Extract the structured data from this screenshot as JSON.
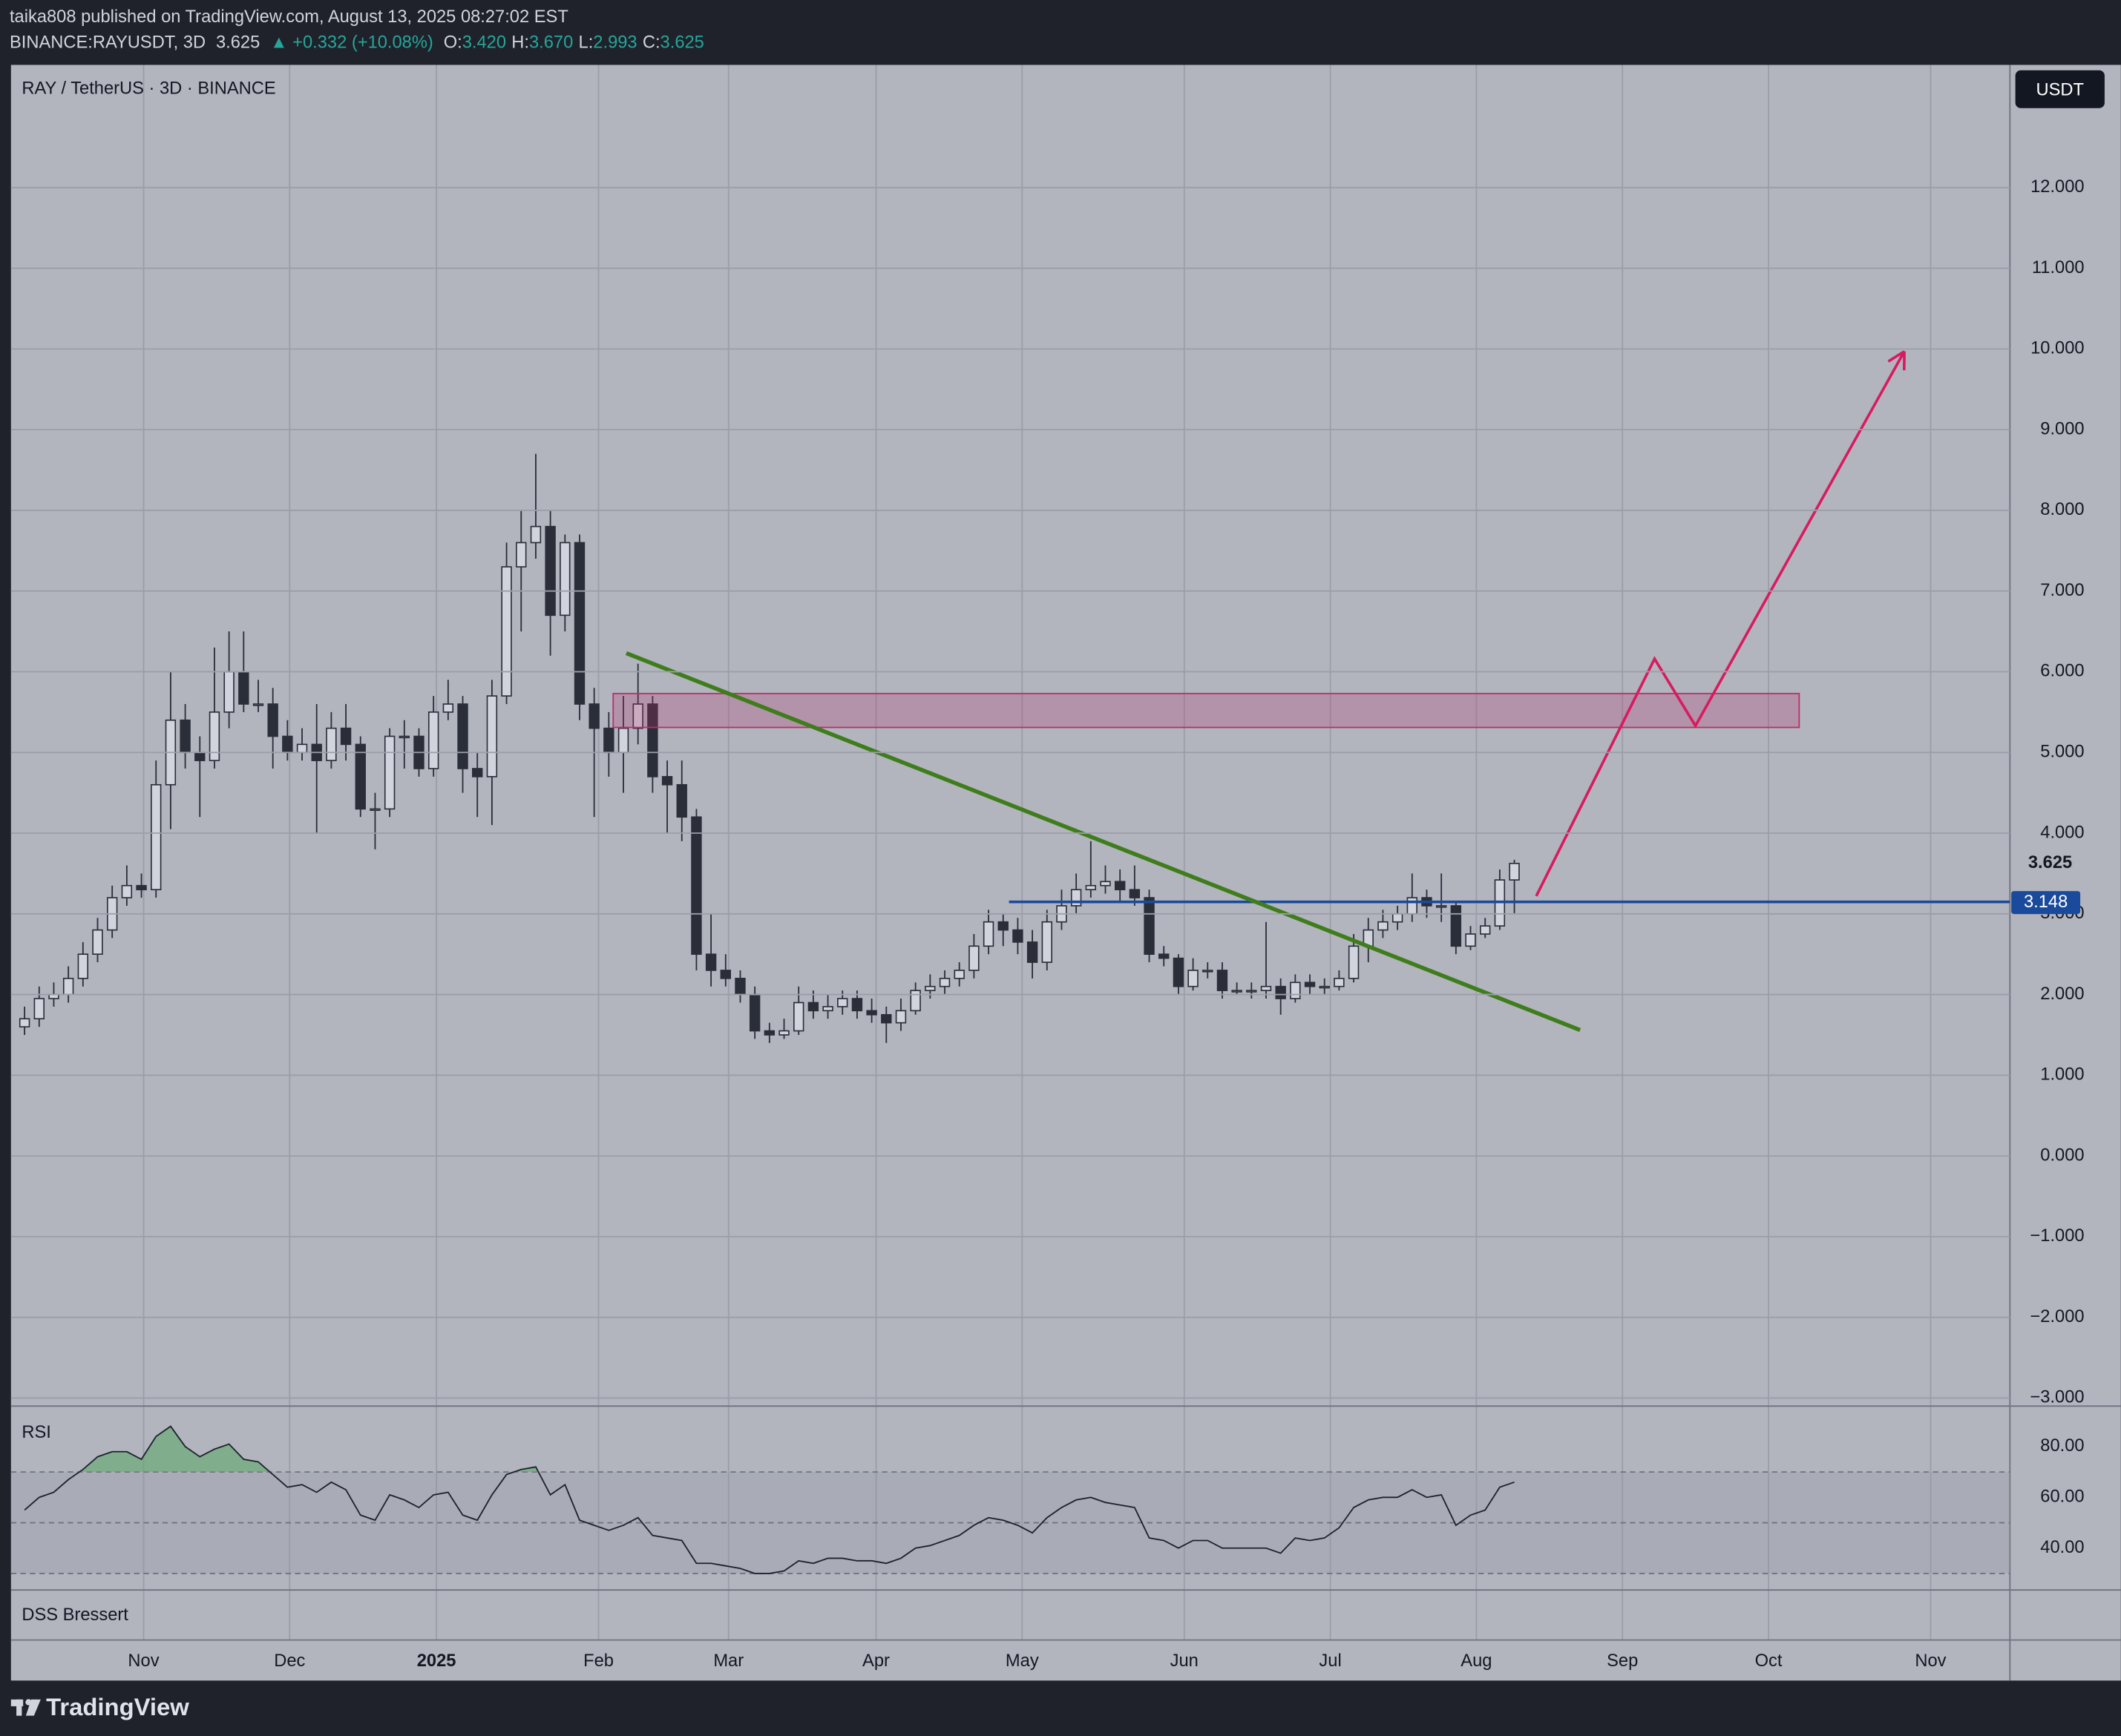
{
  "header": {
    "publisher": "taika808 published on TradingView.com, August 13, 2025 08:27:02 EST",
    "symbol": "BINANCE:RAYUSDT, 3D",
    "last": "3.625",
    "change": "▲ +0.332 (+10.08%)",
    "quote": [
      {
        "label": "O:",
        "value": "3.420"
      },
      {
        "label": "H:",
        "value": "3.670"
      },
      {
        "label": "L:",
        "value": "2.993"
      },
      {
        "label": "C:",
        "value": "3.625"
      }
    ]
  },
  "footer": {
    "logo": "TradingView"
  },
  "chart_data": [
    {
      "type": "candlestick",
      "title": "RAY / TetherUS · 3D · BINANCE",
      "currency": "USDT",
      "grid": true,
      "up_color": "#d1d4dc",
      "down_color": "#2a2e39",
      "wick_color": "#2a2e39",
      "x": [
        0,
        1,
        2,
        3,
        4,
        5,
        6,
        7,
        8,
        9,
        10,
        11,
        12,
        13,
        14,
        15,
        16,
        17,
        18,
        19,
        20,
        21,
        22,
        23,
        24,
        25,
        26,
        27,
        28,
        29,
        30,
        31,
        32,
        33,
        34,
        35,
        36,
        37,
        38,
        39,
        40,
        41,
        42,
        43,
        44,
        45,
        46,
        47,
        48,
        49,
        50,
        51,
        52,
        53,
        54,
        55,
        56,
        57,
        58,
        59,
        60,
        61,
        62,
        63,
        64,
        65,
        66,
        67,
        68,
        69,
        70,
        71,
        72,
        73,
        74,
        75,
        76,
        77,
        78,
        79,
        80,
        81,
        82,
        83,
        84,
        85,
        86,
        87,
        88,
        89,
        90,
        91,
        92,
        93,
        94,
        95,
        96,
        97,
        98,
        99,
        100,
        101,
        102
      ],
      "open": [
        1.6,
        1.7,
        1.95,
        2.0,
        2.2,
        2.5,
        2.8,
        3.2,
        3.35,
        3.3,
        4.6,
        5.4,
        5.0,
        4.9,
        5.5,
        6.0,
        5.6,
        5.6,
        5.2,
        5.0,
        5.1,
        4.9,
        5.3,
        5.1,
        4.3,
        4.3,
        5.2,
        5.2,
        4.8,
        5.5,
        5.6,
        4.8,
        4.7,
        5.7,
        7.3,
        7.6,
        7.8,
        6.7,
        7.6,
        5.6,
        5.3,
        5.0,
        5.3,
        5.6,
        4.7,
        4.6,
        4.2,
        2.5,
        2.3,
        2.2,
        2.0,
        1.55,
        1.5,
        1.55,
        1.9,
        1.8,
        1.85,
        1.95,
        1.8,
        1.75,
        1.65,
        1.8,
        2.05,
        2.1,
        2.2,
        2.3,
        2.6,
        2.9,
        2.8,
        2.65,
        2.4,
        2.9,
        3.1,
        3.3,
        3.35,
        3.4,
        3.3,
        3.2,
        2.5,
        2.45,
        2.1,
        2.3,
        2.3,
        2.05,
        2.05,
        2.05,
        2.1,
        1.95,
        2.15,
        2.1,
        2.1,
        2.2,
        2.6,
        2.8,
        2.9,
        3.0,
        3.2,
        3.1,
        3.1,
        2.6,
        2.75,
        2.85,
        3.42
      ],
      "high": [
        1.85,
        2.1,
        2.15,
        2.35,
        2.65,
        2.95,
        3.35,
        3.6,
        3.5,
        4.9,
        6.0,
        5.6,
        5.2,
        6.3,
        6.5,
        6.5,
        5.9,
        5.8,
        5.4,
        5.3,
        5.6,
        5.5,
        5.6,
        5.2,
        4.5,
        5.3,
        5.4,
        5.3,
        5.7,
        5.9,
        5.7,
        5.0,
        5.9,
        7.6,
        8.0,
        8.7,
        8.0,
        7.7,
        7.7,
        5.8,
        5.5,
        5.7,
        6.1,
        5.7,
        4.9,
        4.9,
        4.3,
        3.0,
        2.5,
        2.3,
        2.1,
        1.65,
        1.7,
        2.1,
        2.05,
        2.0,
        2.05,
        2.05,
        1.95,
        1.85,
        1.95,
        2.15,
        2.25,
        2.3,
        2.4,
        2.75,
        3.05,
        3.0,
        2.95,
        2.8,
        3.05,
        3.3,
        3.5,
        3.9,
        3.6,
        3.55,
        3.6,
        3.3,
        2.6,
        2.5,
        2.45,
        2.4,
        2.4,
        2.15,
        2.15,
        2.9,
        2.2,
        2.25,
        2.25,
        2.2,
        2.3,
        2.75,
        2.95,
        3.05,
        3.1,
        3.5,
        3.3,
        3.5,
        3.15,
        2.85,
        2.95,
        3.55,
        3.67
      ],
      "low": [
        1.5,
        1.6,
        1.85,
        1.9,
        2.1,
        2.4,
        2.7,
        3.1,
        3.2,
        3.2,
        4.05,
        4.8,
        4.2,
        4.8,
        5.3,
        5.5,
        5.5,
        4.8,
        4.9,
        4.9,
        4.0,
        4.8,
        4.9,
        4.2,
        3.8,
        4.2,
        4.8,
        4.7,
        4.7,
        5.4,
        4.5,
        4.2,
        4.1,
        5.6,
        6.5,
        7.4,
        6.2,
        6.5,
        5.4,
        4.2,
        4.7,
        4.5,
        5.1,
        4.5,
        4.0,
        3.9,
        2.3,
        2.1,
        2.1,
        1.9,
        1.45,
        1.4,
        1.45,
        1.5,
        1.7,
        1.7,
        1.75,
        1.7,
        1.65,
        1.4,
        1.55,
        1.75,
        1.95,
        2.0,
        2.1,
        2.2,
        2.5,
        2.6,
        2.5,
        2.2,
        2.3,
        2.8,
        3.0,
        3.2,
        3.25,
        3.15,
        3.1,
        2.4,
        2.35,
        2.0,
        2.05,
        2.2,
        1.95,
        2.0,
        1.95,
        1.95,
        1.75,
        1.9,
        2.0,
        2.0,
        2.05,
        2.15,
        2.4,
        2.7,
        2.8,
        2.9,
        2.95,
        2.9,
        2.5,
        2.55,
        2.7,
        2.8,
        2.993
      ],
      "close": [
        1.7,
        1.95,
        2.0,
        2.2,
        2.5,
        2.8,
        3.2,
        3.35,
        3.3,
        4.6,
        5.4,
        5.0,
        4.9,
        5.5,
        6.0,
        5.6,
        5.6,
        5.2,
        5.0,
        5.1,
        4.9,
        5.3,
        5.1,
        4.3,
        4.3,
        5.2,
        5.2,
        4.8,
        5.5,
        5.6,
        4.8,
        4.7,
        5.7,
        7.3,
        7.6,
        7.8,
        6.7,
        7.6,
        5.6,
        5.3,
        5.0,
        5.3,
        5.6,
        4.7,
        4.6,
        4.2,
        2.5,
        2.3,
        2.2,
        2.0,
        1.55,
        1.5,
        1.55,
        1.9,
        1.8,
        1.85,
        1.95,
        1.8,
        1.75,
        1.65,
        1.8,
        2.05,
        2.1,
        2.2,
        2.3,
        2.6,
        2.9,
        2.8,
        2.65,
        2.4,
        2.9,
        3.1,
        3.3,
        3.35,
        3.4,
        3.3,
        3.2,
        2.5,
        2.45,
        2.1,
        2.3,
        2.3,
        2.05,
        2.05,
        2.05,
        2.1,
        1.95,
        2.15,
        2.1,
        2.1,
        2.2,
        2.6,
        2.8,
        2.9,
        3.0,
        3.2,
        3.1,
        3.1,
        2.6,
        2.75,
        2.85,
        3.42,
        3.625
      ],
      "xlim": [
        -0.93,
        135.93
      ],
      "xticks": [
        {
          "value": 8.15,
          "label": "Nov"
        },
        {
          "value": 18.15,
          "label": "Dec"
        },
        {
          "value": 28.2,
          "label": "2025"
        },
        {
          "value": 39.3,
          "label": "Feb"
        },
        {
          "value": 48.2,
          "label": "Mar"
        },
        {
          "value": 58.3,
          "label": "Apr"
        },
        {
          "value": 68.3,
          "label": "May"
        },
        {
          "value": 79.4,
          "label": "Jun"
        },
        {
          "value": 89.4,
          "label": "Jul"
        },
        {
          "value": 99.4,
          "label": "Aug"
        },
        {
          "value": 109.4,
          "label": "Sep"
        },
        {
          "value": 119.4,
          "label": "Oct"
        },
        {
          "value": 130.5,
          "label": "Nov"
        }
      ],
      "ylim": [
        -3.1,
        13.52
      ],
      "yticks": [
        {
          "value": 12,
          "label": "12.000"
        },
        {
          "value": 11,
          "label": "11.000"
        },
        {
          "value": 10,
          "label": "10.000"
        },
        {
          "value": 9,
          "label": "9.000"
        },
        {
          "value": 8,
          "label": "8.000"
        },
        {
          "value": 7,
          "label": "7.000"
        },
        {
          "value": 6,
          "label": "6.000"
        },
        {
          "value": 5,
          "label": "5.000"
        },
        {
          "value": 4,
          "label": "4.000"
        },
        {
          "value": 3,
          "label": "3.000"
        },
        {
          "value": 2,
          "label": "2.000"
        },
        {
          "value": 1,
          "label": "1.000"
        },
        {
          "value": 0,
          "label": "0.000"
        },
        {
          "value": -1,
          "label": "−1.000"
        },
        {
          "value": -2,
          "label": "−2.000"
        },
        {
          "value": -3,
          "label": "−3.000"
        }
      ],
      "last_price": {
        "value": 3.625,
        "label": "3.625"
      },
      "drawings": [
        {
          "type": "horizontal-ray",
          "color": "#1a4a9c",
          "points": [
            [
              67.4,
              3.148
            ]
          ],
          "label": "3.148"
        },
        {
          "type": "rectangle",
          "color": "#b8306a",
          "points": [
            [
              40.3,
              5.73
            ],
            [
              121.5,
              5.31
            ]
          ]
        },
        {
          "type": "trendline",
          "color": "#3f7d1c",
          "points": [
            [
              41.2,
              6.23
            ],
            [
              106.5,
              1.56
            ]
          ]
        },
        {
          "type": "arrow-path",
          "color": "#d81b60",
          "points": [
            [
              103.5,
              3.22
            ],
            [
              111.6,
              6.16
            ],
            [
              114.4,
              5.33
            ],
            [
              128.7,
              9.97
            ]
          ]
        }
      ]
    },
    {
      "type": "line",
      "title": "RSI",
      "color": "#1e222d",
      "fill_color": "#5fa86a",
      "values": [
        55,
        60,
        62,
        67,
        71,
        76,
        78,
        78,
        75,
        84,
        88,
        80,
        76,
        79,
        81,
        75,
        74,
        69,
        64,
        65,
        62,
        66,
        63,
        53,
        51,
        61,
        59,
        56,
        61,
        62,
        53,
        51,
        61,
        69,
        71,
        72,
        61,
        65,
        51,
        49,
        47,
        49,
        52,
        45,
        44,
        43,
        34,
        34,
        33,
        32,
        30,
        30,
        31,
        35,
        34,
        36,
        36,
        35,
        35,
        34,
        36,
        40,
        41,
        43,
        45,
        49,
        52,
        51,
        49,
        46,
        52,
        56,
        59,
        60,
        58,
        57,
        56,
        44,
        43,
        40,
        43,
        43,
        40,
        40,
        40,
        40,
        38,
        44,
        43,
        44,
        48,
        56,
        59,
        60,
        60,
        63,
        60,
        61,
        49,
        53,
        55,
        64,
        66
      ],
      "ylim": [
        23.5,
        94.9
      ],
      "yticks": [
        {
          "value": 80,
          "label": "80.00"
        },
        {
          "value": 60,
          "label": "60.00"
        },
        {
          "value": 40,
          "label": "40.00"
        }
      ],
      "bands": [
        70,
        50,
        30
      ]
    },
    {
      "type": "line",
      "title": "DSS Bressert"
    }
  ]
}
